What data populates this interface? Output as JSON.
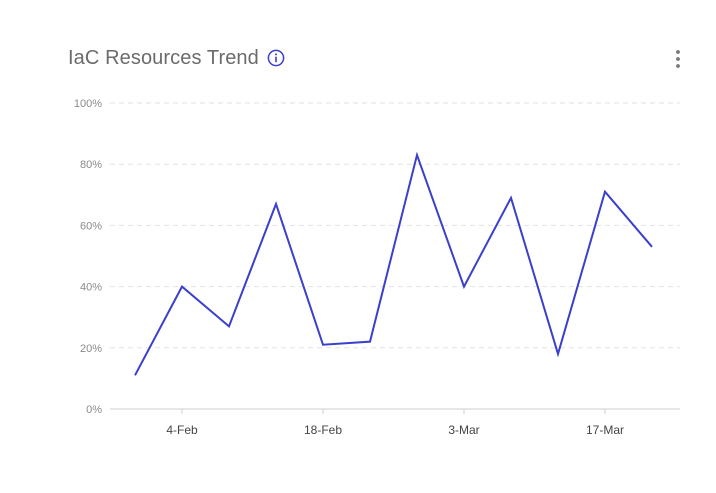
{
  "header": {
    "title": "IaC Resources Trend",
    "info_icon": "info-circle-icon",
    "menu_icon": "vertical-dots-icon"
  },
  "colors": {
    "line": "#3a3fcc",
    "grid": "#e2e2e2",
    "axis": "#cfcfcf",
    "title": "#6b6b6b"
  },
  "chart_data": {
    "type": "line",
    "title": "IaC Resources Trend",
    "xlabel": "",
    "ylabel": "",
    "ylim": [
      0,
      100
    ],
    "y_ticks": [
      0,
      20,
      40,
      60,
      80,
      100
    ],
    "y_tick_labels": [
      "0%",
      "20%",
      "40%",
      "60%",
      "80%",
      "100%"
    ],
    "x_ticks": [
      {
        "label": "4-Feb",
        "index": 1
      },
      {
        "label": "18-Feb",
        "index": 4
      },
      {
        "label": "3-Mar",
        "index": 7
      },
      {
        "label": "17-Mar",
        "index": 10
      }
    ],
    "grid": true,
    "legend": "none",
    "series": [
      {
        "values": [
          11,
          40,
          27,
          67,
          21,
          22,
          83,
          40,
          69,
          18,
          71,
          53
        ]
      }
    ]
  }
}
